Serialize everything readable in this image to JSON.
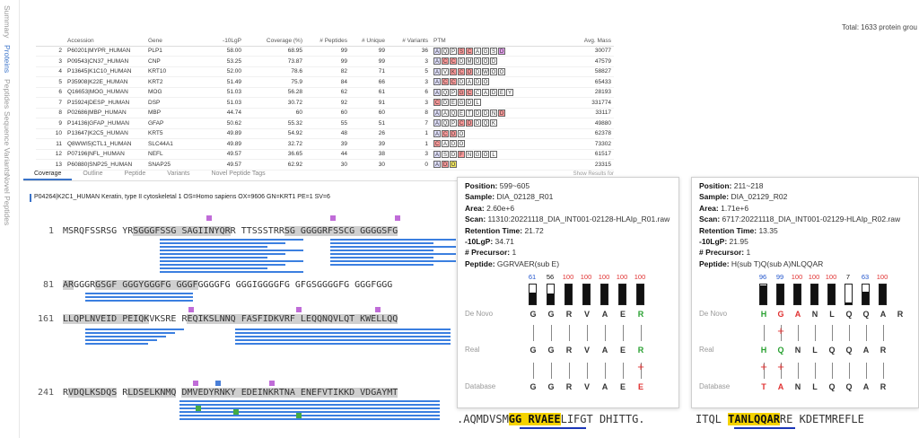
{
  "sidenav": [
    "Summary",
    "Proteins",
    "Peptides",
    "Sequence Variants",
    "Novel Peptides"
  ],
  "sidenav_active": 1,
  "total": "Total: 1633 protein grou",
  "columns": [
    "",
    "Accession",
    "Gene",
    "-10LgP",
    "Coverage (%)",
    "# Peptides",
    "# Unique",
    "# Variants",
    "PTM",
    "Avg. Mass"
  ],
  "rows": [
    {
      "n": "2",
      "acc": "P60201|MYPR_HUMAN",
      "gene": "PLP1",
      "lgp": "58.00",
      "cov": "68.95",
      "pep": "99",
      "uniq": "99",
      "var": "36",
      "mass": "30077",
      "ptm": [
        [
          "A",
          "#e0e0ff"
        ],
        [
          "Q",
          "#fff"
        ],
        [
          "P",
          "#fff"
        ],
        [
          "S",
          "#ff9a9a"
        ],
        [
          "C",
          "#ff9a9a"
        ],
        [
          "A",
          "#fff"
        ],
        [
          "G",
          "#fff"
        ],
        [
          "S",
          "#fff"
        ],
        [
          "D",
          "#e6a0ee"
        ]
      ]
    },
    {
      "n": "3",
      "acc": "P09543|CN37_HUMAN",
      "gene": "CNP",
      "lgp": "53.25",
      "cov": "73.87",
      "pep": "99",
      "uniq": "99",
      "var": "3",
      "mass": "47579",
      "ptm": [
        [
          "A",
          "#e0e0ff"
        ],
        [
          "C",
          "#ff9a9a"
        ],
        [
          "C",
          "#ff9a9a"
        ],
        [
          "D",
          "#fff"
        ],
        [
          "M",
          "#fff"
        ],
        [
          "O",
          "#fff"
        ],
        [
          "O",
          "#fff"
        ],
        [
          "D",
          "#fff"
        ]
      ]
    },
    {
      "n": "4",
      "acc": "P13645|K1C10_HUMAN",
      "gene": "KRT10",
      "lgp": "52.00",
      "cov": "78.6",
      "pep": "82",
      "uniq": "71",
      "var": "5",
      "mass": "58827",
      "ptm": [
        [
          "A",
          "#e0e0ff"
        ],
        [
          "V",
          "#fff"
        ],
        [
          "K",
          "#ff9a9a"
        ],
        [
          "C",
          "#ff9a9a"
        ],
        [
          "D",
          "#ff9a9a"
        ],
        [
          "D",
          "#fff"
        ],
        [
          "W",
          "#fff"
        ],
        [
          "O",
          "#fff"
        ],
        [
          "O",
          "#fff"
        ]
      ]
    },
    {
      "n": "5",
      "acc": "P35908|K22E_HUMAN",
      "gene": "KRT2",
      "lgp": "51.49",
      "cov": "75.9",
      "pep": "84",
      "uniq": "66",
      "var": "3",
      "mass": "65433",
      "ptm": [
        [
          "A",
          "#e0e0ff"
        ],
        [
          "C",
          "#ff9a9a"
        ],
        [
          "C",
          "#ff9a9a"
        ],
        [
          "D",
          "#fff"
        ],
        [
          "A",
          "#fff"
        ],
        [
          "D",
          "#fff"
        ],
        [
          "O",
          "#fff"
        ]
      ]
    },
    {
      "n": "6",
      "acc": "Q16653|MOG_HUMAN",
      "gene": "MOG",
      "lgp": "51.03",
      "cov": "56.28",
      "pep": "62",
      "uniq": "61",
      "var": "6",
      "mass": "28193",
      "ptm": [
        [
          "A",
          "#e0e0ff"
        ],
        [
          "Q",
          "#fff"
        ],
        [
          "P",
          "#fff"
        ],
        [
          "G",
          "#ff9a9a"
        ],
        [
          "C",
          "#ff9a9a"
        ],
        [
          "C",
          "#fff"
        ],
        [
          "A",
          "#fff"
        ],
        [
          "D",
          "#fff"
        ],
        [
          "E",
          "#fff"
        ],
        [
          "Y",
          "#fff"
        ]
      ]
    },
    {
      "n": "7",
      "acc": "P15924|DESP_HUMAN",
      "gene": "DSP",
      "lgp": "51.03",
      "cov": "30.72",
      "pep": "92",
      "uniq": "91",
      "var": "3",
      "mass": "331774",
      "ptm": [
        [
          "C",
          "#ff9a9a"
        ],
        [
          "D",
          "#fff"
        ],
        [
          "E",
          "#fff"
        ],
        [
          "G",
          "#fff"
        ],
        [
          "D",
          "#fff"
        ],
        [
          "L",
          "#fff"
        ]
      ]
    },
    {
      "n": "8",
      "acc": "P02686|MBP_HUMAN",
      "gene": "MBP",
      "lgp": "44.74",
      "cov": "60",
      "pep": "60",
      "uniq": "60",
      "var": "8",
      "mass": "33117",
      "ptm": [
        [
          "A",
          "#e0e0ff"
        ],
        [
          "A",
          "#fff"
        ],
        [
          "Q",
          "#fff"
        ],
        [
          "E",
          "#fff"
        ],
        [
          "T",
          "#fff"
        ],
        [
          "D",
          "#fff"
        ],
        [
          "D",
          "#fff"
        ],
        [
          "N",
          "#fff"
        ],
        [
          "D",
          "#ff9a9a"
        ]
      ]
    },
    {
      "n": "9",
      "acc": "P14136|GFAP_HUMAN",
      "gene": "GFAP",
      "lgp": "50.62",
      "cov": "55.32",
      "pep": "55",
      "uniq": "51",
      "var": "7",
      "mass": "49880",
      "ptm": [
        [
          "A",
          "#e0e0ff"
        ],
        [
          "Q",
          "#fff"
        ],
        [
          "P",
          "#fff"
        ],
        [
          "C",
          "#ff9a9a"
        ],
        [
          "D",
          "#ff9a9a"
        ],
        [
          "D",
          "#fff"
        ],
        [
          "Q",
          "#fff"
        ],
        [
          "K",
          "#fff"
        ]
      ]
    },
    {
      "n": "10",
      "acc": "P13647|K2C5_HUMAN",
      "gene": "KRT5",
      "lgp": "49.89",
      "cov": "54.92",
      "pep": "48",
      "uniq": "26",
      "var": "1",
      "mass": "62378",
      "ptm": [
        [
          "A",
          "#e0e0ff"
        ],
        [
          "C",
          "#ff9a9a"
        ],
        [
          "D",
          "#ff9a9a"
        ],
        [
          "O",
          "#fff"
        ]
      ]
    },
    {
      "n": "11",
      "acc": "Q8WWI5|CTL1_HUMAN",
      "gene": "SLC44A1",
      "lgp": "49.89",
      "cov": "32.72",
      "pep": "39",
      "uniq": "39",
      "var": "1",
      "mass": "73302",
      "ptm": [
        [
          "C",
          "#ff9a9a"
        ],
        [
          "A",
          "#fff"
        ],
        [
          "D",
          "#fff"
        ],
        [
          "O",
          "#fff"
        ]
      ]
    },
    {
      "n": "12",
      "acc": "P07196|NFL_HUMAN",
      "gene": "NEFL",
      "lgp": "49.57",
      "cov": "36.65",
      "pep": "44",
      "uniq": "38",
      "var": "3",
      "mass": "61517",
      "ptm": [
        [
          "A",
          "#e0e0ff"
        ],
        [
          "S",
          "#fff"
        ],
        [
          "D",
          "#fff"
        ],
        [
          "F",
          "#ff9a9a"
        ],
        [
          "N",
          "#fff"
        ],
        [
          "G",
          "#fff"
        ],
        [
          "O",
          "#fff"
        ],
        [
          "L",
          "#fff"
        ]
      ]
    },
    {
      "n": "13",
      "acc": "P60880|SNP25_HUMAN",
      "gene": "SNAP25",
      "lgp": "49.57",
      "cov": "62.92",
      "pep": "30",
      "uniq": "30",
      "var": "0",
      "mass": "23315",
      "ptm": [
        [
          "A",
          "#e0e0ff"
        ],
        [
          "D",
          "#ff9a9a"
        ],
        [
          "O",
          "#f5e960"
        ]
      ]
    }
  ],
  "subtabs": [
    "Coverage",
    "Outline",
    "Peptide",
    "Variants",
    "Novel Peptide Tags"
  ],
  "subtab_active": 0,
  "show_results": "Show Results for",
  "protein_title": "P04264|K2C1_HUMAN Keratin, type II cytoskeletal 1 OS=Homo sapiens OX=9606 GN=KRT1 PE=1 SV=6",
  "sequence_rows": [
    {
      "pos": "1",
      "parts": [
        [
          "MSRQFSSRSG YR",
          false
        ],
        [
          "SGGGFSSG SAGIINYQR",
          true
        ],
        [
          "R TTSSSTRR",
          false
        ],
        [
          "SG GGGGRFSSCG GGGGSFG",
          true
        ]
      ]
    },
    {
      "pos": "81",
      "parts": [
        [
          "AR",
          true
        ],
        [
          "GGGR",
          false
        ],
        [
          "GSGF GGGYGGGFG GGGF",
          true
        ],
        [
          "GGGGFG GGGIGGGGFG GFGSGGGGFG GGGFGGG",
          false
        ]
      ]
    },
    {
      "pos": "161",
      "parts": [
        [
          "LLQPLNVEID PEIQK",
          true
        ],
        [
          "VKSRE R",
          false
        ],
        [
          "EQIKSLNNQ FASFIDKVRF LEQQNQVLQT KWELLQQ",
          true
        ]
      ]
    },
    {
      "pos": "241",
      "parts": [
        [
          "R",
          false
        ],
        [
          "VDQLKSDQS",
          true
        ],
        [
          " R",
          false
        ],
        [
          "LDSELKNMQ",
          true
        ],
        [
          " ",
          false
        ],
        [
          "DMVEDYRNKY EDEINKRTNA ENEFVTIKKD VDGAYMT",
          true
        ]
      ]
    }
  ],
  "popup1": {
    "position": "599~605",
    "sample": "DIA_02128_R01",
    "area": "2.60e+6",
    "scan": "11310:20221118_DIA_INT001-02128-HLAIp_R01.raw",
    "rt": "21.72",
    "lgp": "34.71",
    "precursor": "1",
    "peptide": "GGRVAER(sub E)",
    "scores": [
      61,
      56,
      100,
      100,
      100,
      100,
      100
    ],
    "denovo": [
      "G",
      "G",
      "R",
      "V",
      "A",
      "E",
      "R"
    ],
    "real": [
      "G",
      "G",
      "R",
      "V",
      "A",
      "E",
      "R"
    ],
    "database": [
      "G",
      "G",
      "R",
      "V",
      "A",
      "E",
      "E"
    ]
  },
  "popup2": {
    "position": "211~218",
    "sample": "DIA_02129_R02",
    "area": "1.71e+6",
    "scan": "6717:20221118_DIA_INT001-02129-HLAIp_R02.raw",
    "rt": "13.35",
    "lgp": "21.95",
    "precursor": "1",
    "peptide": "H(sub T)Q(sub A)NLQQAR",
    "scores": [
      96,
      99,
      100,
      100,
      100,
      7,
      63,
      100
    ],
    "denovo": [
      "H",
      "G",
      "A",
      "N",
      "L",
      "Q",
      "Q",
      "A",
      "R"
    ],
    "real": [
      "H",
      "Q",
      "N",
      "L",
      "Q",
      "Q",
      "A",
      "R"
    ],
    "database": [
      "T",
      "A",
      "N",
      "L",
      "Q",
      "Q",
      "A",
      "R"
    ]
  },
  "labels": {
    "position": "Position:",
    "sample": "Sample:",
    "area": "Area:",
    "scan": "Scan:",
    "rt": "Retention Time:",
    "lgp": "-10LgP:",
    "precursor": "# Precursor:",
    "peptide": "Peptide:",
    "denovo": "De Novo",
    "real": "Real",
    "database": "Database"
  },
  "bottom_seq1": [
    ".AQMDVSM",
    "GG RVAEE",
    "LIFGT DHITTG."
  ],
  "bottom_seq2": [
    "ITQL ",
    "TANLQQAR",
    "RE KDETMREFLE"
  ]
}
